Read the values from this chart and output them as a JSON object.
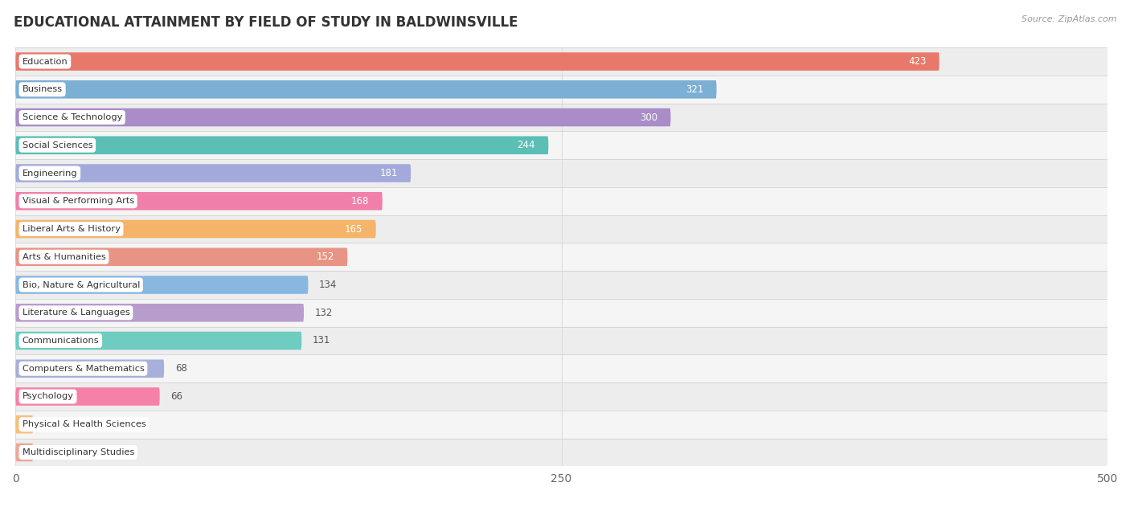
{
  "title": "EDUCATIONAL ATTAINMENT BY FIELD OF STUDY IN BALDWINSVILLE",
  "source": "Source: ZipAtlas.com",
  "categories": [
    "Education",
    "Business",
    "Science & Technology",
    "Social Sciences",
    "Engineering",
    "Visual & Performing Arts",
    "Liberal Arts & History",
    "Arts & Humanities",
    "Bio, Nature & Agricultural",
    "Literature & Languages",
    "Communications",
    "Computers & Mathematics",
    "Psychology",
    "Physical & Health Sciences",
    "Multidisciplinary Studies"
  ],
  "values": [
    423,
    321,
    300,
    244,
    181,
    168,
    165,
    152,
    134,
    132,
    131,
    68,
    66,
    0,
    0
  ],
  "bar_colors": [
    "#E8796A",
    "#7BAFD4",
    "#A98CC8",
    "#5BBFB5",
    "#A3AADB",
    "#F07FAA",
    "#F5B469",
    "#E89484",
    "#88B8E0",
    "#B89CCC",
    "#6ECCC0",
    "#A8AFDC",
    "#F580A8",
    "#F5C080",
    "#EBA898"
  ],
  "xlim": [
    0,
    500
  ],
  "xticks": [
    0,
    250,
    500
  ],
  "bg_row_color": "#EDEDEE",
  "bg_row_alt_color": "#F5F5F6",
  "background_color": "#FFFFFF",
  "grid_color": "#DDDDDD",
  "title_fontsize": 12,
  "bar_height": 0.65,
  "inside_threshold": 150
}
